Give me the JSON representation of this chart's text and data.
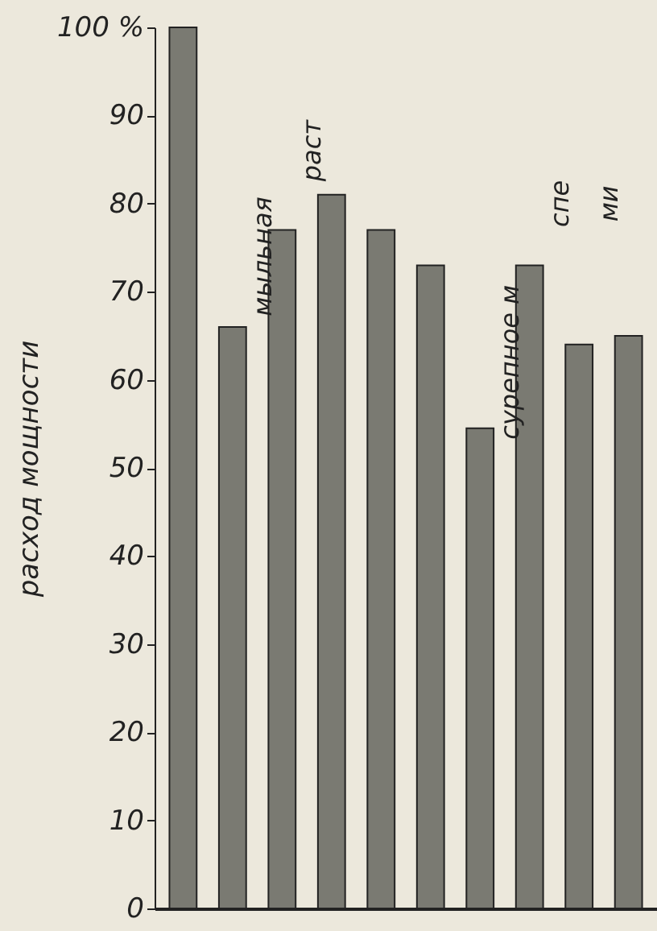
{
  "chart_data": {
    "type": "bar",
    "ylabel": "расход мощности",
    "categories": [
      null,
      null,
      null,
      null,
      null,
      null,
      null,
      null,
      null,
      null
    ],
    "values": [
      100,
      66,
      77,
      81,
      77,
      73,
      54.5,
      73,
      64,
      65
    ],
    "color": "#7a7a72",
    "ylim": [
      0,
      100
    ],
    "yticks": [
      0,
      10,
      20,
      30,
      40,
      50,
      60,
      70,
      80,
      90,
      {
        "value": 100,
        "label": "100 %"
      }
    ],
    "annotations": [
      "мыльная",
      "раст",
      "сурепное м",
      "спе",
      "ми"
    ]
  }
}
